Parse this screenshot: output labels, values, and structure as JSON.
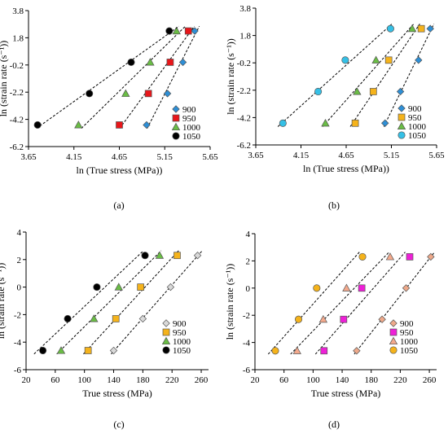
{
  "chart_data": [
    {
      "type": "scatter",
      "panel_label": "(a)",
      "xlabel": "ln (True stress (MPa))",
      "ylabel": "ln (strain rate (s⁻¹))",
      "xlim": [
        3.65,
        5.65
      ],
      "ylim": [
        -6.2,
        3.8
      ],
      "xticks": [
        3.65,
        4.15,
        4.65,
        5.15,
        5.65
      ],
      "yticks": [
        -6.2,
        -4.2,
        -2.2,
        -0.2,
        1.8,
        3.8
      ],
      "xtick_labels": [
        "3.65",
        "4.15",
        "4.65",
        "5.15",
        "5.65"
      ],
      "ytick_labels": [
        "-6.2",
        "-4.2",
        "-2.2",
        "-0.2",
        "1.8",
        "3.8"
      ],
      "legend_position": "right",
      "grid": false,
      "series": [
        {
          "name": "900",
          "marker": "diamond",
          "color": "#2e8fd6",
          "x": [
            4.95,
            5.18,
            5.35,
            5.48
          ],
          "y": [
            -4.61,
            -2.3,
            0.0,
            2.3
          ]
        },
        {
          "name": "950",
          "marker": "square",
          "color": "#e8161a",
          "x": [
            4.65,
            4.97,
            5.21,
            5.41
          ],
          "y": [
            -4.61,
            -2.3,
            0.0,
            2.3
          ]
        },
        {
          "name": "1000",
          "marker": "triangle",
          "color": "#6abd45",
          "x": [
            4.2,
            4.72,
            4.99,
            5.28
          ],
          "y": [
            -4.61,
            -2.3,
            0.0,
            2.3
          ]
        },
        {
          "name": "1050",
          "marker": "circle",
          "color": "#000000",
          "x": [
            3.75,
            4.32,
            4.78,
            5.2
          ],
          "y": [
            -4.61,
            -2.3,
            0.0,
            2.3
          ]
        }
      ]
    },
    {
      "type": "scatter",
      "panel_label": "(b)",
      "xlabel": "ln (True stress (MPa))",
      "ylabel": "ln (strain rate (s⁻¹))",
      "xlim": [
        3.65,
        5.65
      ],
      "ylim": [
        -6.2,
        3.8
      ],
      "xticks": [
        3.65,
        4.15,
        4.65,
        5.15,
        5.65
      ],
      "yticks": [
        -6.2,
        -4.2,
        -2.2,
        -0.2,
        1.8,
        3.8
      ],
      "xtick_labels": [
        "3.65",
        "4.15",
        "4.65",
        "5.15",
        "5.65"
      ],
      "ytick_labels": [
        "-6.2",
        "-4.2",
        "-2.2",
        "-0.2",
        "1.8",
        "3.8"
      ],
      "legend_position": "right",
      "grid": false,
      "series": [
        {
          "name": "900",
          "marker": "diamond",
          "color": "#2e8fd6",
          "x": [
            5.08,
            5.25,
            5.45,
            5.58
          ],
          "y": [
            -4.61,
            -2.3,
            0.0,
            2.3
          ]
        },
        {
          "name": "950",
          "marker": "square",
          "color": "#f5b31b",
          "x": [
            4.75,
            4.95,
            5.12,
            5.48
          ],
          "y": [
            -4.61,
            -2.3,
            0.0,
            2.3
          ]
        },
        {
          "name": "1000",
          "marker": "triangle",
          "color": "#6abd45",
          "x": [
            4.42,
            4.77,
            4.98,
            5.38
          ],
          "y": [
            -4.61,
            -2.3,
            0.0,
            2.3
          ]
        },
        {
          "name": "1050",
          "marker": "circle",
          "color": "#35c0e6",
          "x": [
            3.95,
            4.34,
            4.64,
            5.14
          ],
          "y": [
            -4.61,
            -2.3,
            0.0,
            2.3
          ]
        }
      ]
    },
    {
      "type": "scatter",
      "panel_label": "(c)",
      "xlabel": "True stress (MPa)",
      "ylabel": "ln (strain rate (s⁻¹))",
      "xlim": [
        20,
        270
      ],
      "ylim": [
        -6,
        4
      ],
      "xticks": [
        20,
        60,
        100,
        140,
        180,
        220,
        260
      ],
      "yticks": [
        -6,
        -4,
        -2,
        0,
        2,
        4
      ],
      "xtick_labels": [
        "20",
        "60",
        "100",
        "140",
        "180",
        "220",
        "260"
      ],
      "ytick_labels": [
        "-6",
        "-4",
        "-2",
        "0",
        "2",
        "4"
      ],
      "legend_position": "right",
      "grid": false,
      "series": [
        {
          "name": "900",
          "marker": "diamond",
          "color": "#d9d9d9",
          "x": [
            140,
            180,
            218,
            255
          ],
          "y": [
            -4.61,
            -2.3,
            0.0,
            2.3
          ]
        },
        {
          "name": "950",
          "marker": "square",
          "color": "#f5b31b",
          "x": [
            105,
            143,
            177,
            227
          ],
          "y": [
            -4.61,
            -2.3,
            0.0,
            2.3
          ]
        },
        {
          "name": "1000",
          "marker": "triangle",
          "color": "#6abd45",
          "x": [
            68,
            113,
            147,
            203
          ],
          "y": [
            -4.61,
            -2.3,
            0.0,
            2.3
          ]
        },
        {
          "name": "1050",
          "marker": "circle",
          "color": "#000000",
          "x": [
            43,
            77,
            117,
            183
          ],
          "y": [
            -4.61,
            -2.3,
            0.0,
            2.3
          ]
        }
      ]
    },
    {
      "type": "scatter",
      "panel_label": "(d)",
      "xlabel": "True stress (MPa)",
      "ylabel": "ln (strain rate (s⁻¹))",
      "xlim": [
        20,
        270
      ],
      "ylim": [
        -6,
        4
      ],
      "xticks": [
        20,
        60,
        100,
        140,
        180,
        220,
        260
      ],
      "yticks": [
        -6,
        -4,
        -2,
        0,
        2,
        4
      ],
      "xtick_labels": [
        "20",
        "60",
        "100",
        "140",
        "180",
        "220",
        "260"
      ],
      "ytick_labels": [
        "-6",
        "-4",
        "-2",
        "0",
        "2",
        "4"
      ],
      "legend_position": "right",
      "grid": false,
      "series": [
        {
          "name": "900",
          "marker": "diamond",
          "color": "#eea98a",
          "x": [
            160,
            195,
            228,
            262
          ],
          "y": [
            -4.61,
            -2.3,
            0.0,
            2.3
          ]
        },
        {
          "name": "950",
          "marker": "square",
          "color": "#ee20d7",
          "x": [
            115,
            142,
            167,
            233
          ],
          "y": [
            -4.61,
            -2.3,
            0.0,
            2.3
          ]
        },
        {
          "name": "1000",
          "marker": "triangle",
          "color": "#f4a98c",
          "x": [
            78,
            114,
            146,
            206
          ],
          "y": [
            -4.61,
            -2.3,
            0.0,
            2.3
          ]
        },
        {
          "name": "1050",
          "marker": "circle",
          "color": "#f5b31b",
          "x": [
            48,
            80,
            105,
            168
          ],
          "y": [
            -4.61,
            -2.3,
            0.0,
            2.3
          ]
        }
      ]
    }
  ]
}
